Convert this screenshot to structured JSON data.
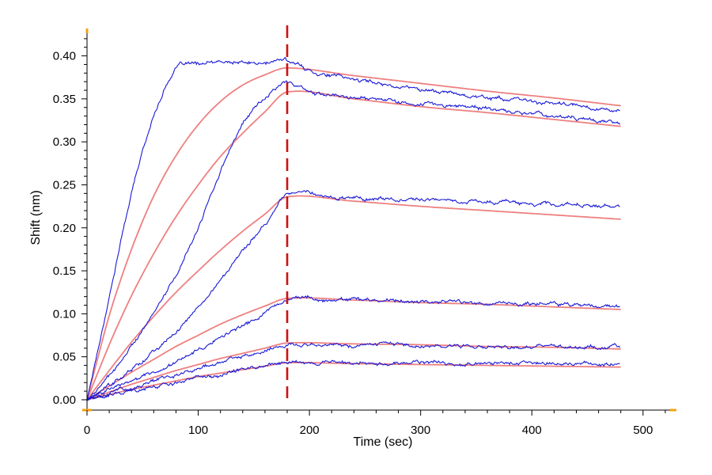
{
  "chart_data": {
    "type": "line",
    "title": "",
    "xlabel": "Time (sec)",
    "ylabel": "Shift (nm)",
    "xlim": [
      0,
      530
    ],
    "ylim": [
      -0.012,
      0.43
    ],
    "x_ticks": [
      0,
      100,
      200,
      300,
      400,
      500
    ],
    "x_tick_labels": [
      "0",
      "100",
      "200",
      "300",
      "400",
      "500"
    ],
    "y_ticks": [
      0.0,
      0.05,
      0.1,
      0.15,
      0.2,
      0.25,
      0.3,
      0.35,
      0.4
    ],
    "y_tick_labels": [
      "0.00",
      "0.05",
      "0.10",
      "0.15",
      "0.20",
      "0.25",
      "0.30",
      "0.35",
      "0.40"
    ],
    "grid": false,
    "legend": "none",
    "dissociation_start_x": 180,
    "association_end_x": 180,
    "end_x": 480,
    "colors": {
      "raw": "#1a1ad6",
      "fit": "#ee8080",
      "marker": "#cc1111",
      "axis": "#000000",
      "axis_accent": "#f5a00f"
    },
    "series": [
      {
        "name": "",
        "kind": "measured",
        "x": [
          0,
          20,
          40,
          60,
          80,
          100,
          120,
          140,
          160,
          180,
          200,
          240,
          280,
          320,
          360,
          400,
          440,
          480
        ],
        "values": [
          0.0,
          0.12,
          0.24,
          0.33,
          0.385,
          0.39,
          0.392,
          0.392,
          0.391,
          0.395,
          0.383,
          0.373,
          0.365,
          0.358,
          0.352,
          0.347,
          0.342,
          0.336
        ]
      },
      {
        "name": "",
        "kind": "fit",
        "x": [
          0,
          20,
          40,
          60,
          80,
          100,
          120,
          140,
          160,
          180,
          240,
          300,
          360,
          420,
          480
        ],
        "values": [
          0.0,
          0.098,
          0.175,
          0.237,
          0.284,
          0.32,
          0.347,
          0.366,
          0.378,
          0.386,
          0.377,
          0.368,
          0.359,
          0.351,
          0.342
        ]
      },
      {
        "name": "",
        "kind": "measured",
        "x": [
          0,
          20,
          40,
          60,
          80,
          100,
          120,
          140,
          160,
          180,
          200,
          240,
          280,
          320,
          360,
          400,
          440,
          480
        ],
        "values": [
          0.0,
          0.028,
          0.062,
          0.1,
          0.145,
          0.2,
          0.265,
          0.322,
          0.35,
          0.37,
          0.358,
          0.353,
          0.348,
          0.343,
          0.338,
          0.333,
          0.328,
          0.322
        ]
      },
      {
        "name": "",
        "kind": "fit",
        "x": [
          0,
          20,
          40,
          60,
          80,
          100,
          120,
          140,
          160,
          180,
          240,
          300,
          360,
          420,
          480
        ],
        "values": [
          0.0,
          0.064,
          0.121,
          0.17,
          0.213,
          0.25,
          0.283,
          0.31,
          0.335,
          0.358,
          0.35,
          0.341,
          0.334,
          0.326,
          0.318
        ]
      },
      {
        "name": "",
        "kind": "measured",
        "x": [
          0,
          20,
          40,
          60,
          80,
          100,
          120,
          140,
          160,
          180,
          220,
          260,
          300,
          340,
          380,
          420,
          460,
          480
        ],
        "values": [
          0.0,
          0.016,
          0.035,
          0.056,
          0.079,
          0.107,
          0.14,
          0.175,
          0.205,
          0.238,
          0.236,
          0.234,
          0.233,
          0.231,
          0.23,
          0.228,
          0.227,
          0.226
        ]
      },
      {
        "name": "",
        "kind": "fit",
        "x": [
          0,
          20,
          40,
          60,
          80,
          100,
          120,
          140,
          160,
          180,
          240,
          300,
          360,
          420,
          480
        ],
        "values": [
          0.0,
          0.034,
          0.067,
          0.097,
          0.125,
          0.15,
          0.174,
          0.196,
          0.216,
          0.236,
          0.231,
          0.225,
          0.22,
          0.215,
          0.21
        ]
      },
      {
        "name": "",
        "kind": "measured",
        "x": [
          0,
          20,
          40,
          60,
          80,
          100,
          120,
          140,
          160,
          180,
          220,
          260,
          300,
          340,
          380,
          420,
          460,
          480
        ],
        "values": [
          0.0,
          0.011,
          0.021,
          0.032,
          0.044,
          0.058,
          0.073,
          0.087,
          0.1,
          0.118,
          0.116,
          0.115,
          0.114,
          0.113,
          0.112,
          0.112,
          0.111,
          0.11
        ]
      },
      {
        "name": "",
        "kind": "fit",
        "x": [
          0,
          20,
          40,
          60,
          80,
          100,
          120,
          140,
          160,
          180,
          240,
          300,
          360,
          420,
          480
        ],
        "values": [
          0.0,
          0.016,
          0.032,
          0.047,
          0.062,
          0.075,
          0.088,
          0.099,
          0.109,
          0.118,
          0.116,
          0.113,
          0.111,
          0.108,
          0.105
        ]
      },
      {
        "name": "",
        "kind": "measured",
        "x": [
          0,
          20,
          40,
          60,
          80,
          100,
          120,
          140,
          160,
          180,
          220,
          260,
          300,
          340,
          380,
          420,
          460,
          480
        ],
        "values": [
          0.0,
          0.008,
          0.015,
          0.022,
          0.029,
          0.036,
          0.044,
          0.051,
          0.057,
          0.065,
          0.064,
          0.064,
          0.063,
          0.063,
          0.062,
          0.062,
          0.061,
          0.061
        ]
      },
      {
        "name": "",
        "kind": "fit",
        "x": [
          0,
          20,
          40,
          60,
          80,
          100,
          120,
          140,
          160,
          180,
          240,
          300,
          360,
          420,
          480
        ],
        "values": [
          0.0,
          0.009,
          0.018,
          0.026,
          0.034,
          0.041,
          0.048,
          0.054,
          0.06,
          0.066,
          0.065,
          0.064,
          0.062,
          0.061,
          0.059
        ]
      },
      {
        "name": "",
        "kind": "measured",
        "x": [
          0,
          20,
          40,
          60,
          80,
          100,
          120,
          140,
          160,
          180,
          220,
          260,
          300,
          340,
          380,
          420,
          460,
          480
        ],
        "values": [
          0.0,
          0.005,
          0.01,
          0.015,
          0.02,
          0.025,
          0.03,
          0.035,
          0.039,
          0.045,
          0.044,
          0.044,
          0.043,
          0.043,
          0.042,
          0.042,
          0.041,
          0.041
        ]
      },
      {
        "name": "",
        "kind": "fit",
        "x": [
          0,
          20,
          40,
          60,
          80,
          100,
          120,
          140,
          160,
          180,
          240,
          300,
          360,
          420,
          480
        ],
        "values": [
          0.0,
          0.006,
          0.012,
          0.017,
          0.022,
          0.027,
          0.031,
          0.035,
          0.039,
          0.043,
          0.042,
          0.041,
          0.04,
          0.039,
          0.038
        ]
      }
    ]
  }
}
